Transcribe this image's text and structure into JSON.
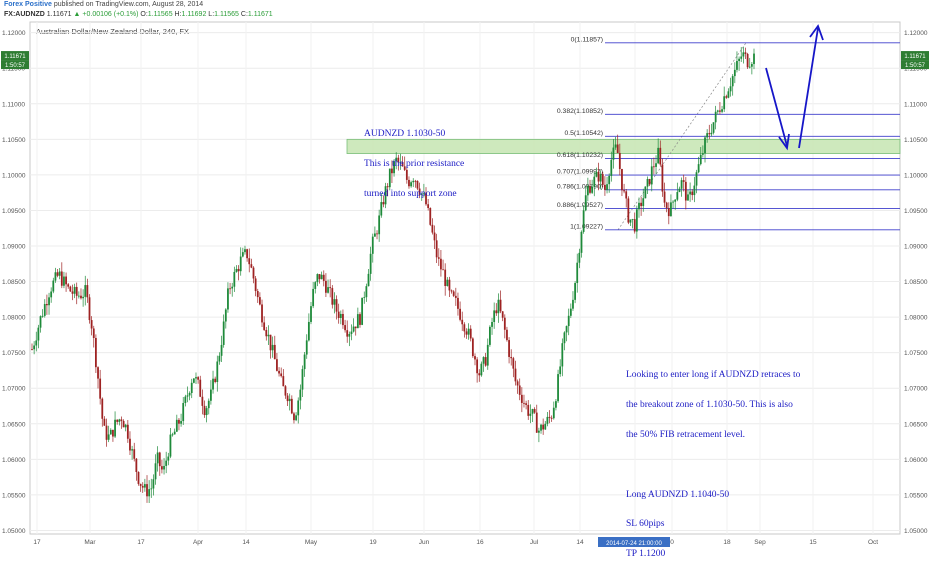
{
  "header": {
    "brand": "Forex Positive",
    "published": "published on TradingView.com, August 28, 2014",
    "symbol": "FX:AUDNZD",
    "last": "1.11671",
    "change": "▲ +0.00106 (+0.1%)",
    "open_label": "O:",
    "open": "1.11565",
    "high_label": "H:",
    "high": "1.11692",
    "low_label": "L:",
    "low": "1.11565",
    "close_label": "C:",
    "close": "1.11671"
  },
  "chart_title": "Australian Dollar/New Zealand Dollar, 240, FX",
  "price_tags": {
    "left": [
      "1.11671",
      "1:50:57"
    ],
    "right": [
      "1.11671",
      "1:50:57"
    ]
  },
  "crosshair_date": "2014-07-24 21:00:00",
  "annotations": {
    "resistance": [
      "AUDNZD 1.1030-50",
      "This is the prior resistance",
      "turned into support zone"
    ],
    "plan": [
      "Looking to enter long if AUDNZD retraces to",
      "the breakout zone of 1.1030-50. This is also",
      "the 50% FIB retracement level.",
      "",
      "Long AUDNZD 1.1040-50",
      "SL 60pips",
      "TP 1.1200"
    ]
  },
  "colors": {
    "bull": "#1e8a3a",
    "bear": "#9e2222",
    "fib": "#3d3dcc",
    "zone_fill": "#c9e7b6",
    "zone_stroke": "#6db86d",
    "arrow": "#1616c8",
    "tag": "#2e7d32"
  },
  "chart_data": {
    "type": "candlestick",
    "title": "Australian Dollar/New Zealand Dollar, 240, FX",
    "x_tick_labels": [
      "17",
      "Mar",
      "17",
      "Apr",
      "14",
      "May",
      "19",
      "Jun",
      "16",
      "Jul",
      "14",
      "11",
      "0",
      "18",
      "Sep",
      "15",
      "Oct"
    ],
    "y_ticks": [
      1.05,
      1.055,
      1.06,
      1.065,
      1.07,
      1.075,
      1.08,
      1.085,
      1.09,
      1.095,
      1.1,
      1.105,
      1.11,
      1.115,
      1.12
    ],
    "y_tick_labels": [
      "1.05000",
      "1.05500",
      "1.06000",
      "1.06500",
      "1.07000",
      "1.07500",
      "1.08000",
      "1.08500",
      "1.09000",
      "1.09500",
      "1.10000",
      "1.10500",
      "1.11000",
      "1.11500",
      "1.12000"
    ],
    "ylim": [
      1.0495,
      1.1215
    ],
    "grid": true,
    "close_path": [
      [
        0,
        1.0755
      ],
      [
        3,
        1.08
      ],
      [
        6,
        1.084
      ],
      [
        9,
        1.086
      ],
      [
        12,
        1.084
      ],
      [
        15,
        1.083
      ],
      [
        18,
        1.0835
      ],
      [
        20,
        1.079
      ],
      [
        22,
        1.072
      ],
      [
        24,
        1.064
      ],
      [
        26,
        1.063
      ],
      [
        28,
        1.065
      ],
      [
        30,
        1.066
      ],
      [
        32,
        1.064
      ],
      [
        34,
        1.06
      ],
      [
        36,
        1.057
      ],
      [
        38,
        1.0555
      ],
      [
        40,
        1.056
      ],
      [
        42,
        1.06
      ],
      [
        44,
        1.058
      ],
      [
        46,
        1.062
      ],
      [
        48,
        1.064
      ],
      [
        50,
        1.066
      ],
      [
        52,
        1.069
      ],
      [
        54,
        1.072
      ],
      [
        56,
        1.07
      ],
      [
        58,
        1.067
      ],
      [
        60,
        1.069
      ],
      [
        62,
        1.073
      ],
      [
        64,
        1.078
      ],
      [
        66,
        1.084
      ],
      [
        68,
        1.086
      ],
      [
        70,
        1.088
      ],
      [
        72,
        1.089
      ],
      [
        74,
        1.086
      ],
      [
        76,
        1.082
      ],
      [
        78,
        1.079
      ],
      [
        80,
        1.076
      ],
      [
        82,
        1.073
      ],
      [
        84,
        1.07
      ],
      [
        86,
        1.069
      ],
      [
        88,
        1.066
      ],
      [
        90,
        1.07
      ],
      [
        92,
        1.077
      ],
      [
        94,
        1.083
      ],
      [
        96,
        1.086
      ],
      [
        98,
        1.085
      ],
      [
        100,
        1.083
      ],
      [
        102,
        1.081
      ],
      [
        104,
        1.08
      ],
      [
        106,
        1.078
      ],
      [
        108,
        1.079
      ],
      [
        110,
        1.08
      ],
      [
        112,
        1.085
      ],
      [
        114,
        1.09
      ],
      [
        116,
        1.093
      ],
      [
        118,
        1.097
      ],
      [
        120,
        1.1
      ],
      [
        122,
        1.102
      ],
      [
        124,
        1.101
      ],
      [
        126,
        1.099
      ],
      [
        128,
        1.1
      ],
      [
        130,
        1.098
      ],
      [
        132,
        1.096
      ],
      [
        134,
        1.092
      ],
      [
        136,
        1.088
      ],
      [
        138,
        1.086
      ],
      [
        140,
        1.083
      ],
      [
        142,
        1.082
      ],
      [
        144,
        1.08
      ],
      [
        146,
        1.078
      ],
      [
        148,
        1.075
      ],
      [
        150,
        1.072
      ],
      [
        152,
        1.074
      ],
      [
        154,
        1.079
      ],
      [
        156,
        1.082
      ],
      [
        158,
        1.079
      ],
      [
        160,
        1.075
      ],
      [
        162,
        1.071
      ],
      [
        164,
        1.069
      ],
      [
        166,
        1.067
      ],
      [
        168,
        1.066
      ],
      [
        170,
        1.064
      ],
      [
        172,
        1.065
      ],
      [
        174,
        1.066
      ],
      [
        176,
        1.07
      ],
      [
        178,
        1.076
      ],
      [
        180,
        1.08
      ],
      [
        182,
        1.085
      ],
      [
        184,
        1.092
      ],
      [
        186,
        1.098
      ],
      [
        188,
        1.099
      ],
      [
        190,
        1.1
      ],
      [
        192,
        1.098
      ],
      [
        194,
        1.102
      ],
      [
        196,
        1.104
      ],
      [
        198,
        1.098
      ],
      [
        200,
        1.094
      ],
      [
        202,
        1.093
      ],
      [
        204,
        1.096
      ],
      [
        206,
        1.098
      ],
      [
        208,
        1.101
      ],
      [
        210,
        1.103
      ],
      [
        212,
        1.096
      ],
      [
        214,
        1.095
      ],
      [
        216,
        1.098
      ],
      [
        218,
        1.099
      ],
      [
        220,
        1.096
      ],
      [
        222,
        1.099
      ],
      [
        224,
        1.102
      ],
      [
        226,
        1.105
      ],
      [
        228,
        1.107
      ],
      [
        230,
        1.109
      ],
      [
        232,
        1.111
      ],
      [
        234,
        1.113
      ],
      [
        236,
        1.115
      ],
      [
        238,
        1.117
      ],
      [
        240,
        1.116
      ],
      [
        242,
        1.1167
      ]
    ],
    "fibonacci": [
      {
        "label": "0(1.11857)",
        "value": 1.11857
      },
      {
        "label": "0.382(1.10852)",
        "value": 1.10852
      },
      {
        "label": "0.5(1.10542)",
        "value": 1.10542
      },
      {
        "label": "0.618(1.10232)",
        "value": 1.10232
      },
      {
        "label": "0.707(1.09997)",
        "value": 1.09997
      },
      {
        "label": "0.786(1.09790)",
        "value": 1.0979
      },
      {
        "label": "0.886(1.09527)",
        "value": 1.09527
      },
      {
        "label": "1(1.09227)",
        "value": 1.09227
      }
    ],
    "support_zone": [
      1.103,
      1.105
    ]
  }
}
